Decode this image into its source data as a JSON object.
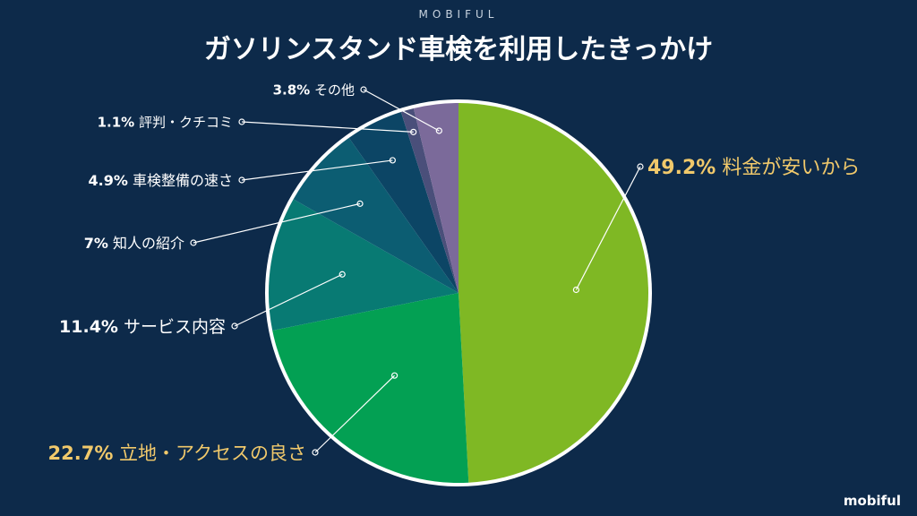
{
  "brand_top": "MOBIFUL",
  "brand_bottom": "mobiful",
  "chart_data": {
    "type": "pie",
    "title": "ガソリンスタンド車検を利用したきっかけ",
    "slices": [
      {
        "label": "料金が安いから",
        "pct_text": "49.2%",
        "value": 49.2,
        "color": "#7fb824",
        "label_color": "#f1c96b",
        "side": "right"
      },
      {
        "label": "立地・アクセスの良さ",
        "pct_text": "22.7%",
        "value": 22.7,
        "color": "#03a053",
        "label_color": "#f1c96b",
        "side": "left"
      },
      {
        "label": "サービス内容",
        "pct_text": "11.4%",
        "value": 11.4,
        "color": "#087a73",
        "label_color": "#ffffff",
        "side": "left"
      },
      {
        "label": "知人の紹介",
        "pct_text": "7%",
        "value": 7.0,
        "color": "#0c5d72",
        "label_color": "#ffffff",
        "side": "left"
      },
      {
        "label": "車検整備の速さ",
        "pct_text": "4.9%",
        "value": 4.9,
        "color": "#0c4565",
        "label_color": "#ffffff",
        "side": "left"
      },
      {
        "label": "評判・クチコミ",
        "pct_text": "1.1%",
        "value": 1.1,
        "color": "#4a4f7a",
        "label_color": "#ffffff",
        "side": "left"
      },
      {
        "label": "その他",
        "pct_text": "3.8%",
        "value": 3.8,
        "color": "#7b6a9a",
        "label_color": "#ffffff",
        "side": "left"
      }
    ]
  }
}
